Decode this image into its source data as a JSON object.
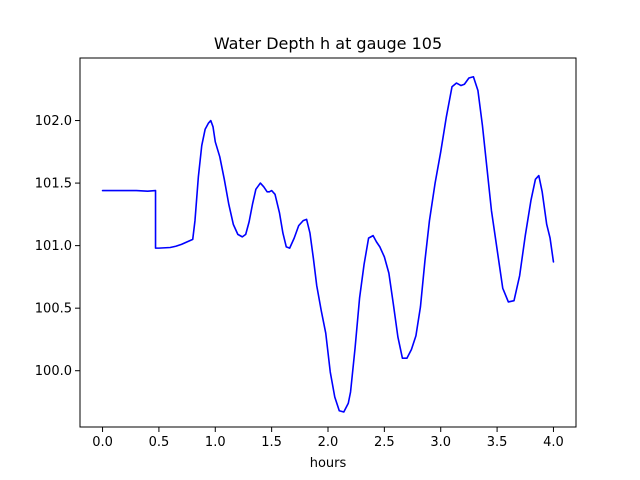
{
  "chart_data": {
    "type": "line",
    "title": "Water Depth h at gauge 105",
    "xlabel": "hours",
    "ylabel": "",
    "xlim": [
      -0.2,
      4.2
    ],
    "ylim": [
      99.55,
      102.5
    ],
    "xticks": [
      0.0,
      0.5,
      1.0,
      1.5,
      2.0,
      2.5,
      3.0,
      3.5,
      4.0
    ],
    "xtick_labels": [
      "0.0",
      "0.5",
      "1.0",
      "1.5",
      "2.0",
      "2.5",
      "3.0",
      "3.5",
      "4.0"
    ],
    "yticks": [
      100.0,
      100.5,
      101.0,
      101.5,
      102.0
    ],
    "ytick_labels": [
      "100.0",
      "100.5",
      "101.0",
      "101.5",
      "102.0"
    ],
    "grid": false,
    "series": [
      {
        "color": "#0000ff",
        "x": [
          0.0,
          0.2,
          0.3,
          0.4,
          0.47,
          0.47,
          0.5,
          0.6,
          0.65,
          0.7,
          0.75,
          0.8,
          0.82,
          0.85,
          0.88,
          0.91,
          0.94,
          0.96,
          0.98,
          1.0,
          1.04,
          1.08,
          1.12,
          1.16,
          1.2,
          1.24,
          1.27,
          1.3,
          1.33,
          1.36,
          1.4,
          1.43,
          1.46,
          1.48,
          1.5,
          1.53,
          1.57,
          1.6,
          1.63,
          1.66,
          1.7,
          1.74,
          1.78,
          1.81,
          1.84,
          1.87,
          1.9,
          1.94,
          1.98,
          2.02,
          2.06,
          2.1,
          2.14,
          2.18,
          2.2,
          2.24,
          2.28,
          2.32,
          2.36,
          2.4,
          2.43,
          2.46,
          2.5,
          2.54,
          2.58,
          2.62,
          2.66,
          2.7,
          2.74,
          2.78,
          2.82,
          2.86,
          2.9,
          2.95,
          3.0,
          3.05,
          3.1,
          3.14,
          3.18,
          3.21,
          3.25,
          3.29,
          3.33,
          3.37,
          3.41,
          3.45,
          3.5,
          3.55,
          3.6,
          3.65,
          3.7,
          3.75,
          3.8,
          3.84,
          3.87,
          3.9,
          3.94,
          3.97,
          4.0
        ],
        "y": [
          101.44,
          101.44,
          101.44,
          101.435,
          101.44,
          100.98,
          100.98,
          100.985,
          100.995,
          101.01,
          101.03,
          101.05,
          101.2,
          101.55,
          101.8,
          101.93,
          101.98,
          102.0,
          101.95,
          101.83,
          101.71,
          101.53,
          101.33,
          101.17,
          101.09,
          101.07,
          101.09,
          101.19,
          101.33,
          101.45,
          101.5,
          101.47,
          101.43,
          101.43,
          101.44,
          101.41,
          101.26,
          101.1,
          100.99,
          100.98,
          101.06,
          101.16,
          101.2,
          101.21,
          101.1,
          100.9,
          100.68,
          100.48,
          100.3,
          99.99,
          99.79,
          99.68,
          99.67,
          99.74,
          99.83,
          100.18,
          100.58,
          100.85,
          101.06,
          101.08,
          101.03,
          100.99,
          100.91,
          100.78,
          100.53,
          100.27,
          100.1,
          100.1,
          100.17,
          100.28,
          100.51,
          100.88,
          101.2,
          101.5,
          101.75,
          102.03,
          102.27,
          102.3,
          102.28,
          102.29,
          102.34,
          102.35,
          102.24,
          101.96,
          101.62,
          101.28,
          100.97,
          100.66,
          100.55,
          100.56,
          100.76,
          101.08,
          101.36,
          101.53,
          101.56,
          101.43,
          101.17,
          101.06,
          100.87
        ]
      }
    ]
  }
}
